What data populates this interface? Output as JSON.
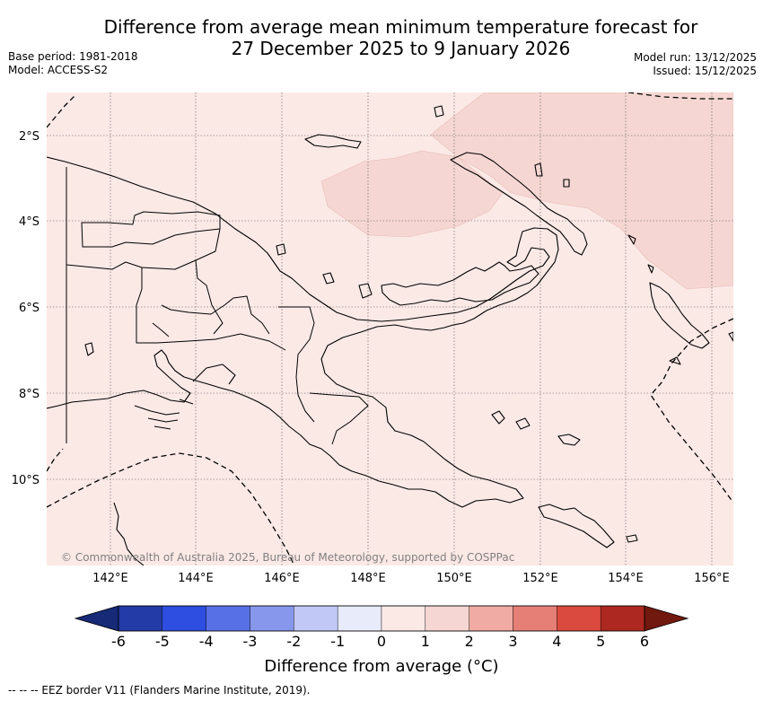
{
  "header": {
    "title_line1": "Difference from average mean minimum temperature forecast for",
    "title_line2": "27 December 2025 to 9 January 2026",
    "base_period": "Base period: 1981-2018",
    "model": "Model: ACCESS-S2",
    "model_run": "Model run: 13/12/2025",
    "issued": "Issued: 15/12/2025"
  },
  "map": {
    "lat_labels": [
      "2°S",
      "4°S",
      "6°S",
      "8°S",
      "10°S"
    ],
    "lon_labels": [
      "142°E",
      "144°E",
      "146°E",
      "148°E",
      "150°E",
      "152°E",
      "154°E",
      "156°E"
    ],
    "copyright": "© Commonwealth of Australia 2025, Bureau of Meteorology, supported by COSPPac",
    "base_fill_color": "#fbe9e6",
    "anomaly_fill_color": "#f5d6d2"
  },
  "colorbar": {
    "tick_labels": [
      "-6",
      "-5",
      "-4",
      "-3",
      "-2",
      "-1",
      "0",
      "1",
      "2",
      "3",
      "4",
      "5",
      "6"
    ],
    "colors": [
      "#233ba6",
      "#2d4ee0",
      "#5870e6",
      "#8797ec",
      "#c1c8f6",
      "#e7ebfa",
      "#fbe9e6",
      "#f5d6d2",
      "#f0aba4",
      "#e67f76",
      "#db4a3e",
      "#ad2820"
    ],
    "low_extension_color": "#162a78",
    "high_extension_color": "#71180f",
    "label": "Difference from average (°C)"
  },
  "legend": {
    "eez_text": "-- -- -- EEZ border V11 (Flanders Marine Institute, 2019)."
  }
}
